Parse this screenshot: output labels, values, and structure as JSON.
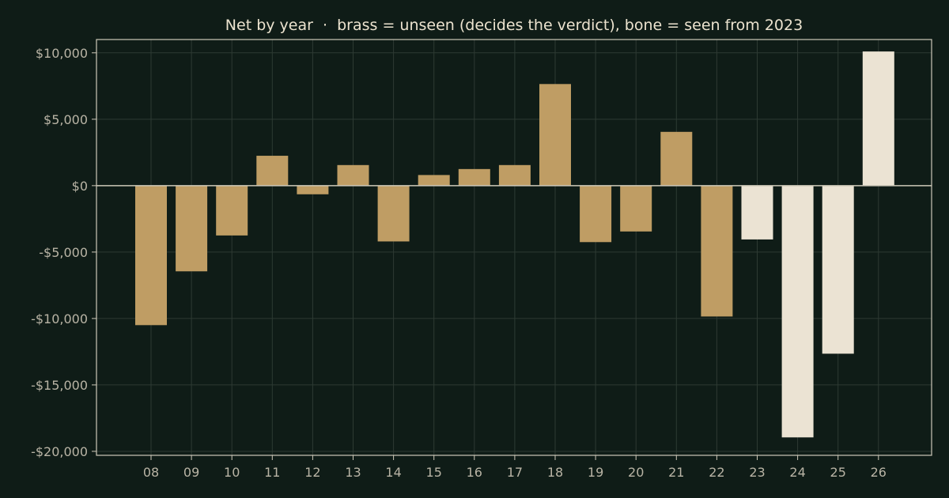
{
  "chart_data": {
    "type": "bar",
    "title": "Net by year  ·  brass = unseen (decides the verdict), bone = seen from 2023",
    "xlabel": "",
    "ylabel": "",
    "categories": [
      "08",
      "09",
      "10",
      "11",
      "12",
      "13",
      "14",
      "15",
      "16",
      "17",
      "18",
      "19",
      "20",
      "21",
      "22",
      "23",
      "24",
      "25",
      "26"
    ],
    "values": [
      -10500,
      -6450,
      -3750,
      2250,
      -650,
      1550,
      -4200,
      800,
      1250,
      1550,
      7650,
      -4250,
      -3450,
      4050,
      -9850,
      -4050,
      -18950,
      -12650,
      10100
    ],
    "ylim": [
      -20300,
      11000
    ],
    "yticks": [
      10000,
      5000,
      0,
      -5000,
      -10000,
      -15000,
      -20000
    ],
    "ytick_labels": [
      "$10,000",
      "$5,000",
      "$0",
      "-$5,000",
      "-$10,000",
      "-$15,000",
      "-$20,000"
    ],
    "grid": true,
    "legend": "none",
    "colors": {
      "background": "#0f1c17",
      "unseen_bar": "#bf9d64",
      "seen_bar": "#ebe3d3",
      "axis": "#cdc8b8",
      "grid": "#2d3a33",
      "zero_line": "#cdc8b8",
      "title": "#ece3cf",
      "tick_label": "#b9b4a5"
    },
    "seen_from_category": "23"
  }
}
